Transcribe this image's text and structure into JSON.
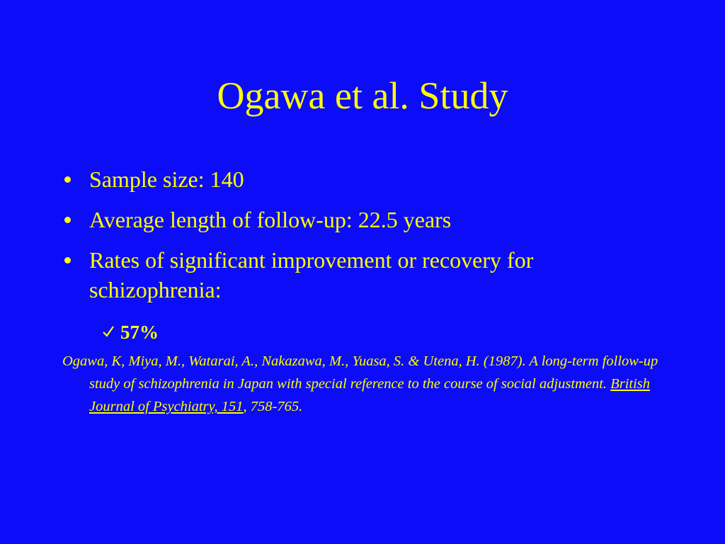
{
  "title": "Ogawa et al. Study",
  "bullets": [
    "Sample size: 140",
    "Average length of follow-up: 22.5 years",
    "Rates of significant improvement or recovery for schizophrenia:"
  ],
  "sub_bullets": [
    "57%"
  ],
  "citation": {
    "text": "Ogawa, K, Miya, M., Watarai, A., Nakazawa, M., Yuasa, S. & Utena, H. (1987). A long-term follow-up study of schizophrenia in Japan with special reference to the course of social adjustment. ",
    "journal": "British Journal of Psychiatry, 151",
    "pages": ", 758-765."
  }
}
